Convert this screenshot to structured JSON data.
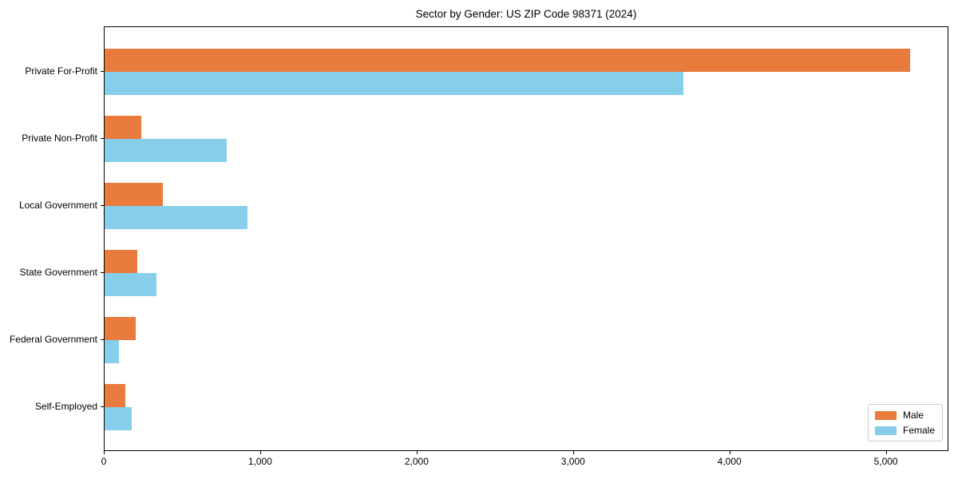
{
  "chart_data": {
    "type": "bar",
    "orientation": "horizontal",
    "title": "Sector by Gender: US ZIP Code 98371 (2024)",
    "categories": [
      "Private For-Profit",
      "Private Non-Profit",
      "Local Government",
      "State Government",
      "Federal Government",
      "Self-Employed"
    ],
    "series": [
      {
        "name": "Male",
        "color": "#E97B3C",
        "values": [
          5150,
          235,
          370,
          210,
          200,
          130
        ]
      },
      {
        "name": "Female",
        "color": "#87CEEB",
        "values": [
          3700,
          780,
          915,
          330,
          90,
          175
        ]
      }
    ],
    "xlabel": "",
    "ylabel": "",
    "xlim": [
      0,
      5400
    ],
    "x_ticks": [
      {
        "value": 0,
        "label": "0"
      },
      {
        "value": 1000,
        "label": "1,000"
      },
      {
        "value": 2000,
        "label": "2,000"
      },
      {
        "value": 3000,
        "label": "3,000"
      },
      {
        "value": 4000,
        "label": "4,000"
      },
      {
        "value": 5000,
        "label": "5,000"
      }
    ],
    "grid": false,
    "legend_position": "lower right",
    "spine_color": "#000000"
  }
}
